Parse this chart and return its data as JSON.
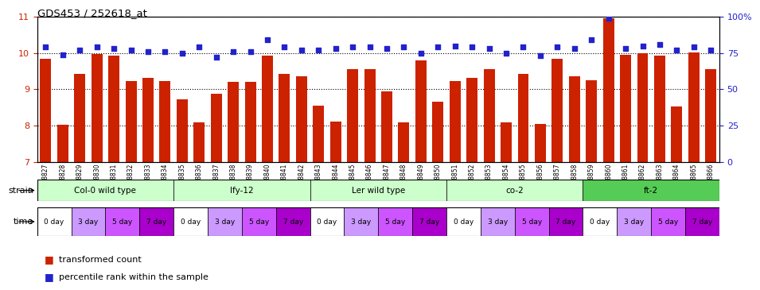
{
  "title": "GDS453 / 252618_at",
  "samples": [
    "GSM8827",
    "GSM8828",
    "GSM8829",
    "GSM8830",
    "GSM8831",
    "GSM8832",
    "GSM8833",
    "GSM8834",
    "GSM8835",
    "GSM8836",
    "GSM8837",
    "GSM8838",
    "GSM8839",
    "GSM8840",
    "GSM8841",
    "GSM8842",
    "GSM8843",
    "GSM8844",
    "GSM8845",
    "GSM8846",
    "GSM8847",
    "GSM8848",
    "GSM8849",
    "GSM8850",
    "GSM8851",
    "GSM8852",
    "GSM8853",
    "GSM8854",
    "GSM8855",
    "GSM8856",
    "GSM8857",
    "GSM8858",
    "GSM8859",
    "GSM8860",
    "GSM8861",
    "GSM8862",
    "GSM8863",
    "GSM8864",
    "GSM8865",
    "GSM8866"
  ],
  "bar_values": [
    9.85,
    8.02,
    9.42,
    9.97,
    9.92,
    9.22,
    9.32,
    9.22,
    8.72,
    8.1,
    8.88,
    9.2,
    9.2,
    9.92,
    9.42,
    9.35,
    8.55,
    8.12,
    9.55,
    9.55,
    8.95,
    8.1,
    9.8,
    8.65,
    9.22,
    9.32,
    9.55,
    8.1,
    9.42,
    8.05,
    9.85,
    9.35,
    9.25,
    10.95,
    9.95,
    10.0,
    9.92,
    8.52,
    10.02,
    9.55
  ],
  "dot_values": [
    79,
    74,
    77,
    79,
    78,
    77,
    76,
    76,
    75,
    79,
    72,
    76,
    76,
    84,
    79,
    77,
    77,
    78,
    79,
    79,
    78,
    79,
    75,
    79,
    80,
    79,
    78,
    75,
    79,
    73,
    79,
    78,
    84,
    99,
    78,
    80,
    81,
    77,
    79,
    77
  ],
  "ylim_left": [
    7,
    11
  ],
  "ylim_right": [
    0,
    100
  ],
  "yticks_left": [
    7,
    8,
    9,
    10,
    11
  ],
  "yticks_right": [
    0,
    25,
    50,
    75,
    100
  ],
  "bar_color": "#cc2200",
  "dot_color": "#2222cc",
  "strains": [
    {
      "label": "Col-0 wild type",
      "start": 0,
      "end": 8,
      "color": "#ccffcc"
    },
    {
      "label": "lfy-12",
      "start": 8,
      "end": 16,
      "color": "#ccffcc"
    },
    {
      "label": "Ler wild type",
      "start": 16,
      "end": 24,
      "color": "#ccffcc"
    },
    {
      "label": "co-2",
      "start": 24,
      "end": 32,
      "color": "#ccffcc"
    },
    {
      "label": "ft-2",
      "start": 32,
      "end": 40,
      "color": "#55cc55"
    }
  ],
  "time_labels": [
    "0 day",
    "3 day",
    "5 day",
    "7 day"
  ],
  "time_colors": [
    "#ffffff",
    "#cc99ff",
    "#cc55ff",
    "#aa00cc"
  ],
  "legend_items": [
    {
      "label": "transformed count",
      "color": "#cc2200"
    },
    {
      "label": "percentile rank within the sample",
      "color": "#2222cc"
    }
  ]
}
